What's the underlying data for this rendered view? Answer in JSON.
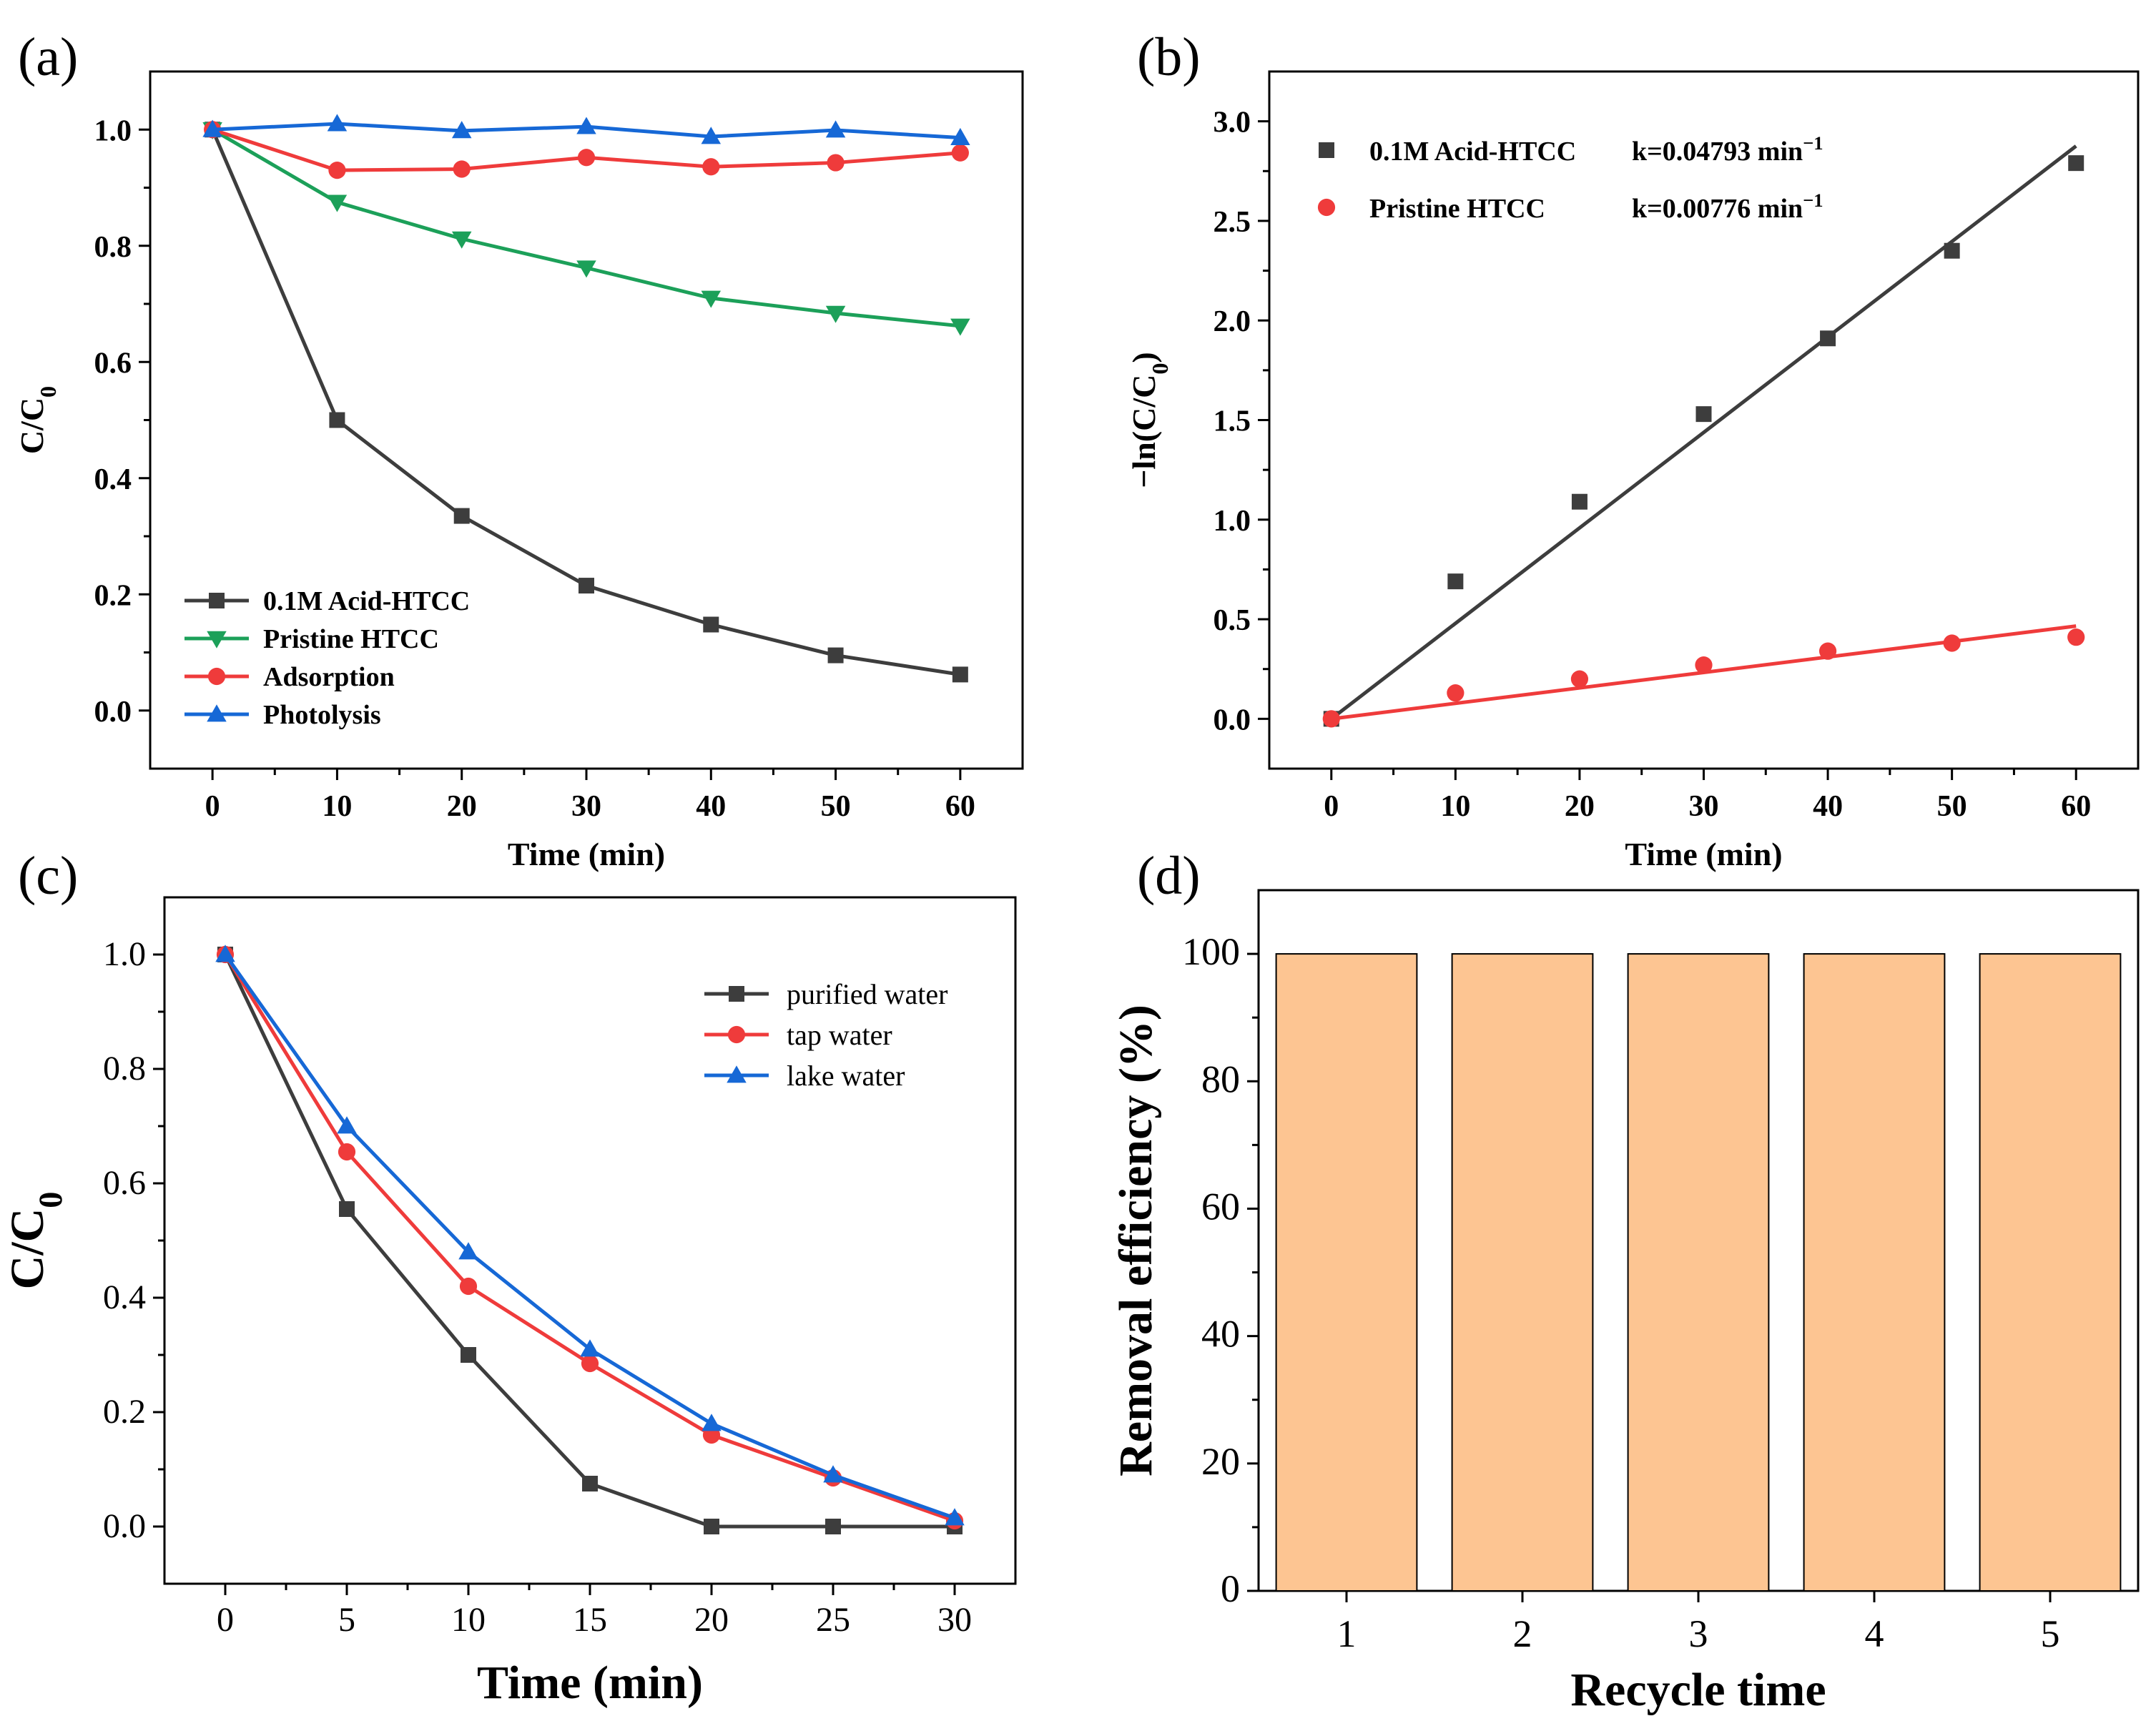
{
  "chart_data": [
    {
      "id": "a",
      "panel_label": "(a)",
      "type": "line",
      "xlabel": "Time (min)",
      "ylabel": "C/C",
      "ylabel_sub": "0",
      "xlim": [
        -5,
        65
      ],
      "ylim": [
        -0.1,
        1.1
      ],
      "xticks": [
        "0",
        "10",
        "20",
        "30",
        "40",
        "50",
        "60"
      ],
      "yticks": [
        "0.0",
        "0.2",
        "0.4",
        "0.6",
        "0.8",
        "1.0"
      ],
      "legend_position": "bottom-left",
      "x": [
        0,
        10,
        20,
        30,
        40,
        50,
        60
      ],
      "series": [
        {
          "name": "0.1M Acid-HTCC",
          "color": "#3d3d3d",
          "marker": "square",
          "values": [
            1.0,
            0.5,
            0.335,
            0.215,
            0.148,
            0.095,
            0.062
          ]
        },
        {
          "name": "Pristine HTCC",
          "color": "#1ca059",
          "marker": "triangle-down",
          "values": [
            1.0,
            0.875,
            0.812,
            0.762,
            0.71,
            0.684,
            0.662
          ]
        },
        {
          "name": "Adsorption",
          "color": "#ef3b3b",
          "marker": "circle",
          "values": [
            1.0,
            0.93,
            0.932,
            0.952,
            0.936,
            0.943,
            0.96
          ]
        },
        {
          "name": "Photolysis",
          "color": "#1668d6",
          "marker": "triangle-up",
          "values": [
            1.0,
            1.01,
            0.998,
            1.005,
            0.988,
            0.999,
            0.986
          ]
        }
      ]
    },
    {
      "id": "b",
      "panel_label": "(b)",
      "type": "scatter",
      "xlabel": "Time (min)",
      "ylabel": "−ln(C/C",
      "ylabel_sub": "0",
      "ylabel_end": ")",
      "xlim": [
        -5,
        65
      ],
      "ylim": [
        -0.25,
        3.25
      ],
      "xticks": [
        "0",
        "10",
        "20",
        "30",
        "40",
        "50",
        "60"
      ],
      "yticks": [
        "0.0",
        "0.5",
        "1.0",
        "1.5",
        "2.0",
        "2.5",
        "3.0"
      ],
      "legend_position": "top-left",
      "x": [
        0,
        10,
        20,
        30,
        40,
        50,
        60
      ],
      "series": [
        {
          "name": "0.1M Acid-HTCC",
          "k_label": "k=0.04793 min",
          "k_sup": "−1",
          "color": "#3d3d3d",
          "marker": "square",
          "values": [
            0.0,
            0.69,
            1.09,
            1.53,
            1.91,
            2.35,
            2.79
          ],
          "fit_slope": 0.04793
        },
        {
          "name": "Pristine HTCC",
          "k_label": "k=0.00776 min",
          "k_sup": "−1",
          "color": "#ef3b3b",
          "marker": "circle",
          "values": [
            0.0,
            0.13,
            0.2,
            0.27,
            0.34,
            0.38,
            0.41
          ],
          "fit_slope": 0.00776
        }
      ]
    },
    {
      "id": "c",
      "panel_label": "(c)",
      "type": "line",
      "xlabel": "Time (min)",
      "ylabel": "C/C",
      "ylabel_sub": "0",
      "xlim": [
        -2.5,
        32.5
      ],
      "ylim": [
        -0.1,
        1.1
      ],
      "xticks": [
        "0",
        "5",
        "10",
        "15",
        "20",
        "25",
        "30"
      ],
      "yticks": [
        "0.0",
        "0.2",
        "0.4",
        "0.6",
        "0.8",
        "1.0"
      ],
      "legend_position": "top-right",
      "x": [
        0,
        5,
        10,
        15,
        20,
        25,
        30
      ],
      "series": [
        {
          "name": "purified water",
          "color": "#3d3d3d",
          "marker": "square",
          "values": [
            1.0,
            0.555,
            0.3,
            0.075,
            0.0,
            0.0,
            0.0
          ]
        },
        {
          "name": "tap water",
          "color": "#ef3b3b",
          "marker": "circle",
          "values": [
            1.0,
            0.655,
            0.42,
            0.285,
            0.16,
            0.085,
            0.01
          ]
        },
        {
          "name": "lake water",
          "color": "#1668d6",
          "marker": "triangle-up",
          "values": [
            1.0,
            0.7,
            0.48,
            0.31,
            0.18,
            0.09,
            0.015
          ]
        }
      ]
    },
    {
      "id": "d",
      "panel_label": "(d)",
      "type": "bar",
      "xlabel": "Recycle time",
      "ylabel": "Removal efficiency (%)",
      "xlim": [
        0.5,
        5.5
      ],
      "ylim": [
        0,
        110
      ],
      "categories": [
        "1",
        "2",
        "3",
        "4",
        "5"
      ],
      "yticks": [
        "0",
        "20",
        "40",
        "60",
        "80",
        "100"
      ],
      "values": [
        100,
        100,
        100,
        100,
        100
      ],
      "bar_color": "#fdc592"
    }
  ]
}
